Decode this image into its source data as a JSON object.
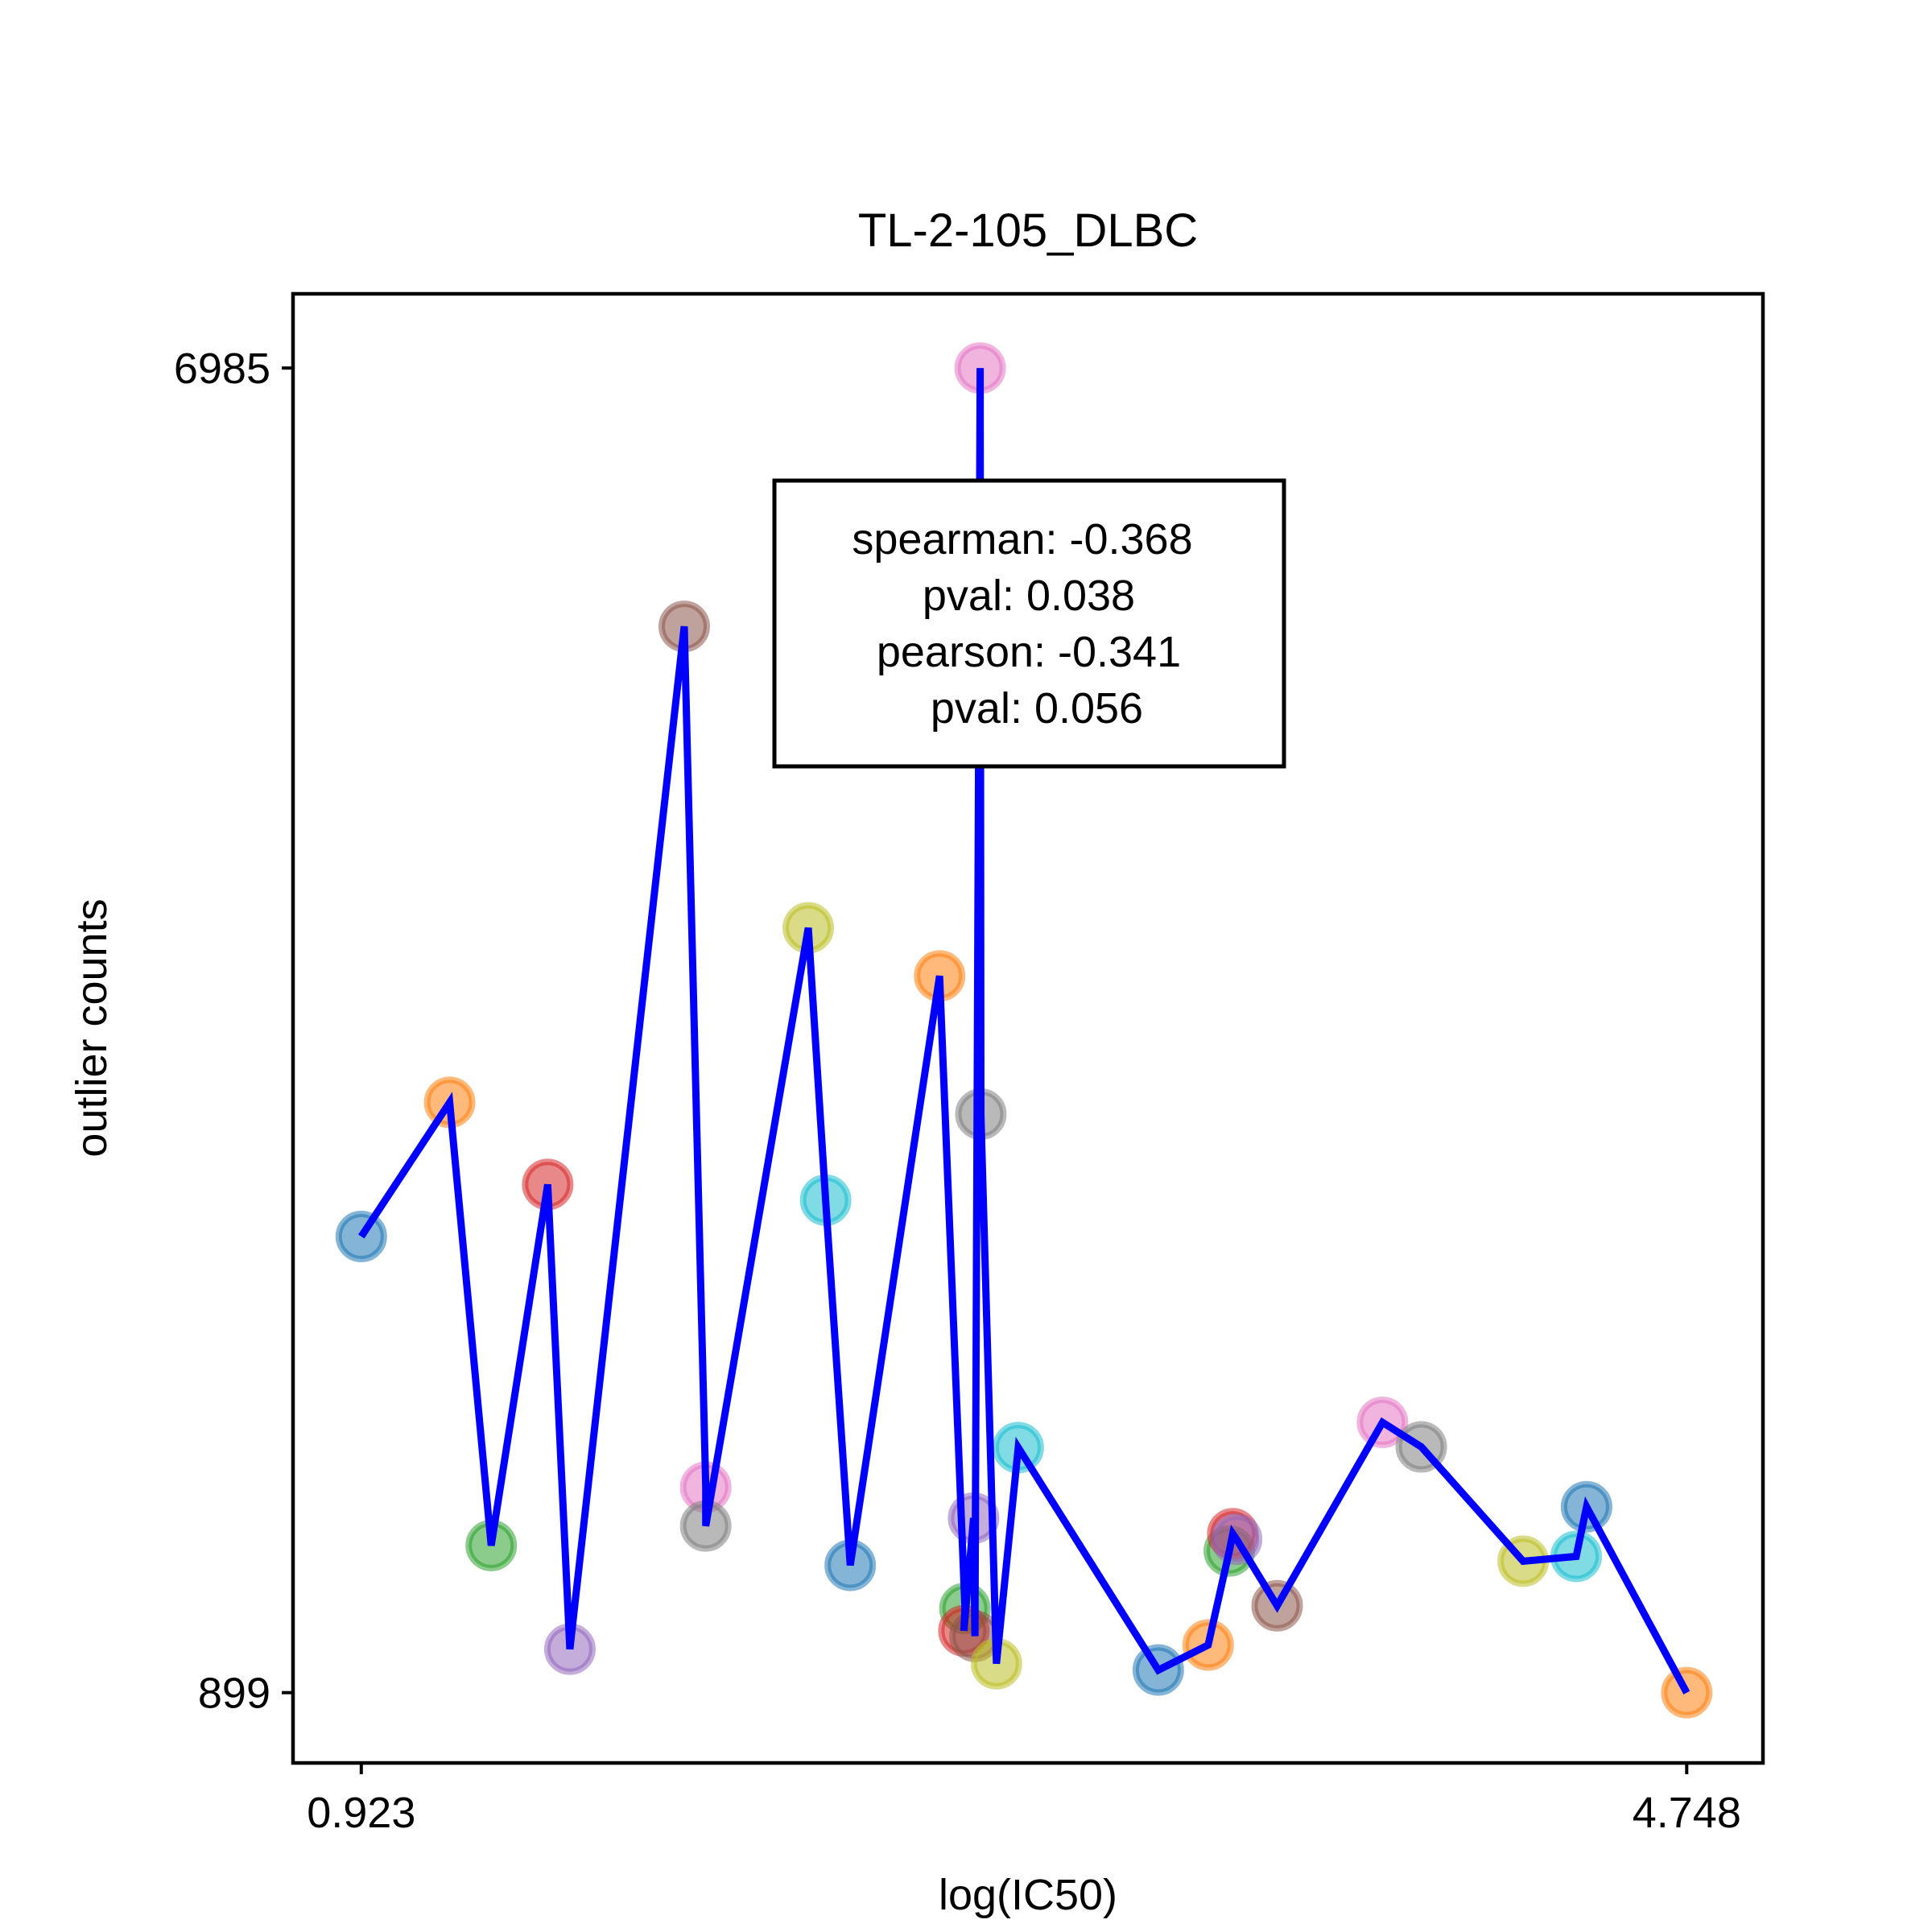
{
  "chart_data": {
    "type": "scatter",
    "title": "TL-2-105_DLBC",
    "xlabel": "log(IC50)",
    "ylabel": "outlier counts",
    "x_ticks": [
      "0.923",
      "4.748"
    ],
    "y_ticks": [
      "6985",
      "899"
    ],
    "x_tick_values": [
      0.923,
      4.748
    ],
    "y_tick_values": [
      6985,
      899
    ],
    "xlim": [
      0.726,
      4.968
    ],
    "ylim": [
      576,
      7326
    ],
    "grid": false,
    "legend": "none",
    "line_color": "#0000ff",
    "marker_colors": [
      "#1f77b4",
      "#ff7f0e",
      "#2ca02c",
      "#d62728",
      "#9467bd",
      "#8c564b",
      "#e377c2",
      "#7f7f7f",
      "#bcbd22",
      "#17becf"
    ],
    "points": [
      {
        "x": 0.923,
        "y": 2995
      },
      {
        "x": 1.178,
        "y": 3611
      },
      {
        "x": 1.298,
        "y": 1575
      },
      {
        "x": 1.461,
        "y": 3234
      },
      {
        "x": 1.525,
        "y": 1099
      },
      {
        "x": 1.855,
        "y": 5798
      },
      {
        "x": 1.917,
        "y": 1843
      },
      {
        "x": 1.917,
        "y": 1665
      },
      {
        "x": 2.213,
        "y": 4413
      },
      {
        "x": 2.263,
        "y": 3162
      },
      {
        "x": 2.334,
        "y": 1484
      },
      {
        "x": 2.592,
        "y": 4192
      },
      {
        "x": 2.665,
        "y": 1286
      },
      {
        "x": 2.662,
        "y": 1183
      },
      {
        "x": 2.69,
        "y": 1701
      },
      {
        "x": 2.694,
        "y": 1158
      },
      {
        "x": 2.709,
        "y": 6985
      },
      {
        "x": 2.711,
        "y": 3557
      },
      {
        "x": 2.756,
        "y": 1032
      },
      {
        "x": 2.819,
        "y": 2025
      },
      {
        "x": 3.223,
        "y": 1003
      },
      {
        "x": 3.367,
        "y": 1118
      },
      {
        "x": 3.428,
        "y": 1550
      },
      {
        "x": 3.438,
        "y": 1629
      },
      {
        "x": 3.449,
        "y": 1604
      },
      {
        "x": 3.566,
        "y": 1298
      },
      {
        "x": 3.87,
        "y": 2141
      },
      {
        "x": 3.982,
        "y": 2028
      },
      {
        "x": 4.276,
        "y": 1503
      },
      {
        "x": 4.429,
        "y": 1525
      },
      {
        "x": 4.459,
        "y": 1753
      },
      {
        "x": 4.748,
        "y": 899
      }
    ],
    "annotation": [
      "spearman: -0.368",
      "pval: 0.038",
      "pearson: -0.341",
      "pval: 0.056"
    ]
  }
}
